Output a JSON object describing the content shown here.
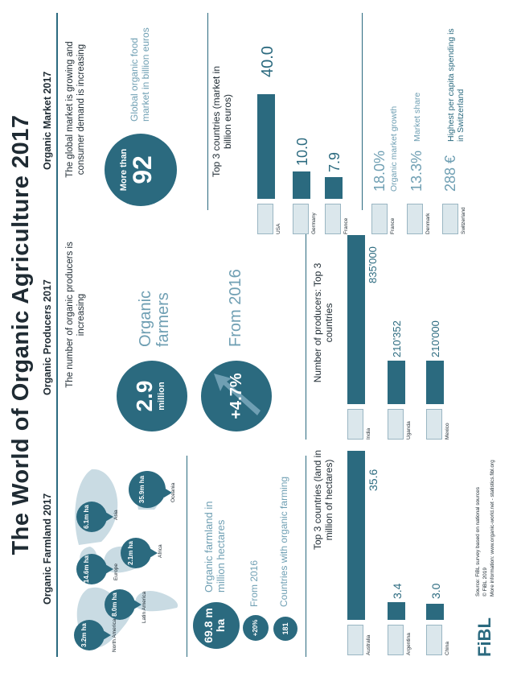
{
  "title": "The World of Organic Agriculture 2017",
  "farmland": {
    "header": "Organic Farmland 2017",
    "regions": [
      {
        "name": "North America",
        "value": "3.2m ha"
      },
      {
        "name": "Latin America",
        "value": "8.0m ha"
      },
      {
        "name": "Europe",
        "value": "14.6m ha"
      },
      {
        "name": "Africa",
        "value": "2.1m ha"
      },
      {
        "name": "Asia",
        "value": "6.1m ha"
      },
      {
        "name": "Oceania",
        "value": "35.9m ha"
      }
    ],
    "total_value": "69.8 m ha",
    "total_label": "Organic farmland in million hectares",
    "growth_value": "+20%",
    "growth_label": "From 2016",
    "countries_value": "181",
    "countries_label": "Countries with organic farming",
    "top_title": "Top 3 countries (land in million of hectares)",
    "top": [
      {
        "country": "Australia",
        "value": "35.6"
      },
      {
        "country": "Argentina",
        "value": "3.4"
      },
      {
        "country": "China",
        "value": "3.0"
      }
    ]
  },
  "producers": {
    "header": "Organic Producers 2017",
    "intro": "The number of organic producers is increasing",
    "farmers_value": "2.9",
    "farmers_unit": "million",
    "farmers_label": "Organic farmers",
    "growth_value": "+4.7%",
    "growth_label": "From 2016",
    "top_title": "Number of producers: Top 3 countries",
    "top": [
      {
        "country": "India",
        "value": "835'000"
      },
      {
        "country": "Uganda",
        "value": "210'352"
      },
      {
        "country": "Mexico",
        "value": "210'000"
      }
    ]
  },
  "market": {
    "header": "Organic Market 2017",
    "intro": "The global market is growing and consumer demand is increasing",
    "circle_prefix": "More than",
    "circle_value": "92",
    "circle_label": "Global organic food market in billion euros",
    "top_title": "Top 3 countries (market in billion euros)",
    "top": [
      {
        "country": "USA",
        "value": "40.0"
      },
      {
        "country": "Germany",
        "value": "10.0"
      },
      {
        "country": "France",
        "value": "7.9"
      }
    ],
    "facts": [
      {
        "country": "France",
        "value": "18.0%",
        "label": "Organic market growth"
      },
      {
        "country": "Denmark",
        "value": "13.3%",
        "label": "Market share"
      },
      {
        "country": "Switzerland",
        "value": "288 €",
        "label": "Highest per capita spending is in Switzerland"
      }
    ]
  },
  "footer": {
    "source": "Source: FiBL survey based on national sources",
    "copyright": "© FiBL 2019",
    "more_info": "More information: www.organic-world.net - statistics.fibl.org",
    "logo": "FiBL"
  },
  "colors": {
    "accent": "#2b6a7f",
    "light": "#6f9fb3",
    "map": "#c9dbe3"
  }
}
